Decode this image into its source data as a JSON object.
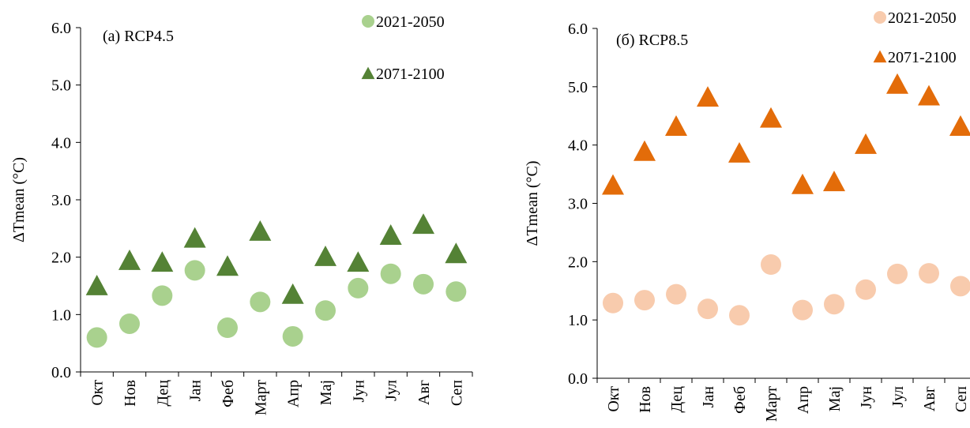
{
  "chart_data": [
    {
      "type": "scatter",
      "title": "(a) RCP4.5",
      "y_label": "ΔTmean (°C)",
      "categories": [
        "Окт",
        "Нов",
        "Дец",
        "Јан",
        "Феб",
        "Март",
        "Апр",
        "Мај",
        "Јун",
        "Јул",
        "Авг",
        "Сеп"
      ],
      "series": [
        {
          "name": "2021-2050",
          "color": "#a9d18e",
          "marker": "circle",
          "values": [
            0.6,
            0.84,
            1.33,
            1.77,
            0.77,
            1.22,
            0.62,
            1.07,
            1.46,
            1.71,
            1.53,
            1.4
          ]
        },
        {
          "name": "2071-2100",
          "color": "#548235",
          "marker": "triangle",
          "values": [
            1.5,
            1.94,
            1.91,
            2.33,
            1.84,
            2.45,
            1.35,
            2.01,
            1.91,
            2.38,
            2.57,
            2.06
          ]
        }
      ],
      "ylim": [
        0,
        6
      ],
      "yticks": [
        {
          "value": 0,
          "label": "0.0"
        },
        {
          "value": 1,
          "label": "1.0"
        },
        {
          "value": 2,
          "label": "2.0"
        },
        {
          "value": 3,
          "label": "3.0"
        },
        {
          "value": 4,
          "label": "4.0"
        },
        {
          "value": 5,
          "label": "5.0"
        },
        {
          "value": 6,
          "label": "6.0"
        }
      ]
    },
    {
      "type": "scatter",
      "title": "(б) RCP8.5",
      "y_label": "ΔTmean (°C)",
      "categories": [
        "Окт",
        "Нов",
        "Дец",
        "Јан",
        "Феб",
        "Март",
        "Апр",
        "Мај",
        "Јун",
        "Јул",
        "Авг",
        "Сеп"
      ],
      "series": [
        {
          "name": "2021-2050",
          "color": "#f8cbad",
          "marker": "circle",
          "values": [
            1.29,
            1.34,
            1.44,
            1.19,
            1.08,
            1.95,
            1.17,
            1.27,
            1.52,
            1.79,
            1.8,
            1.58
          ]
        },
        {
          "name": "2071-2100",
          "color": "#e36c09",
          "marker": "triangle",
          "values": [
            3.31,
            3.89,
            4.32,
            4.82,
            3.86,
            4.46,
            3.32,
            3.37,
            4.01,
            5.04,
            4.84,
            4.32
          ]
        }
      ],
      "ylim": [
        0,
        6
      ],
      "yticks": [
        {
          "value": 0,
          "label": "0.0"
        },
        {
          "value": 1,
          "label": "1.0"
        },
        {
          "value": 2,
          "label": "2.0"
        },
        {
          "value": 3,
          "label": "3.0"
        },
        {
          "value": 4,
          "label": "4.0"
        },
        {
          "value": 5,
          "label": "5.0"
        },
        {
          "value": 6,
          "label": "6.0"
        }
      ]
    }
  ]
}
